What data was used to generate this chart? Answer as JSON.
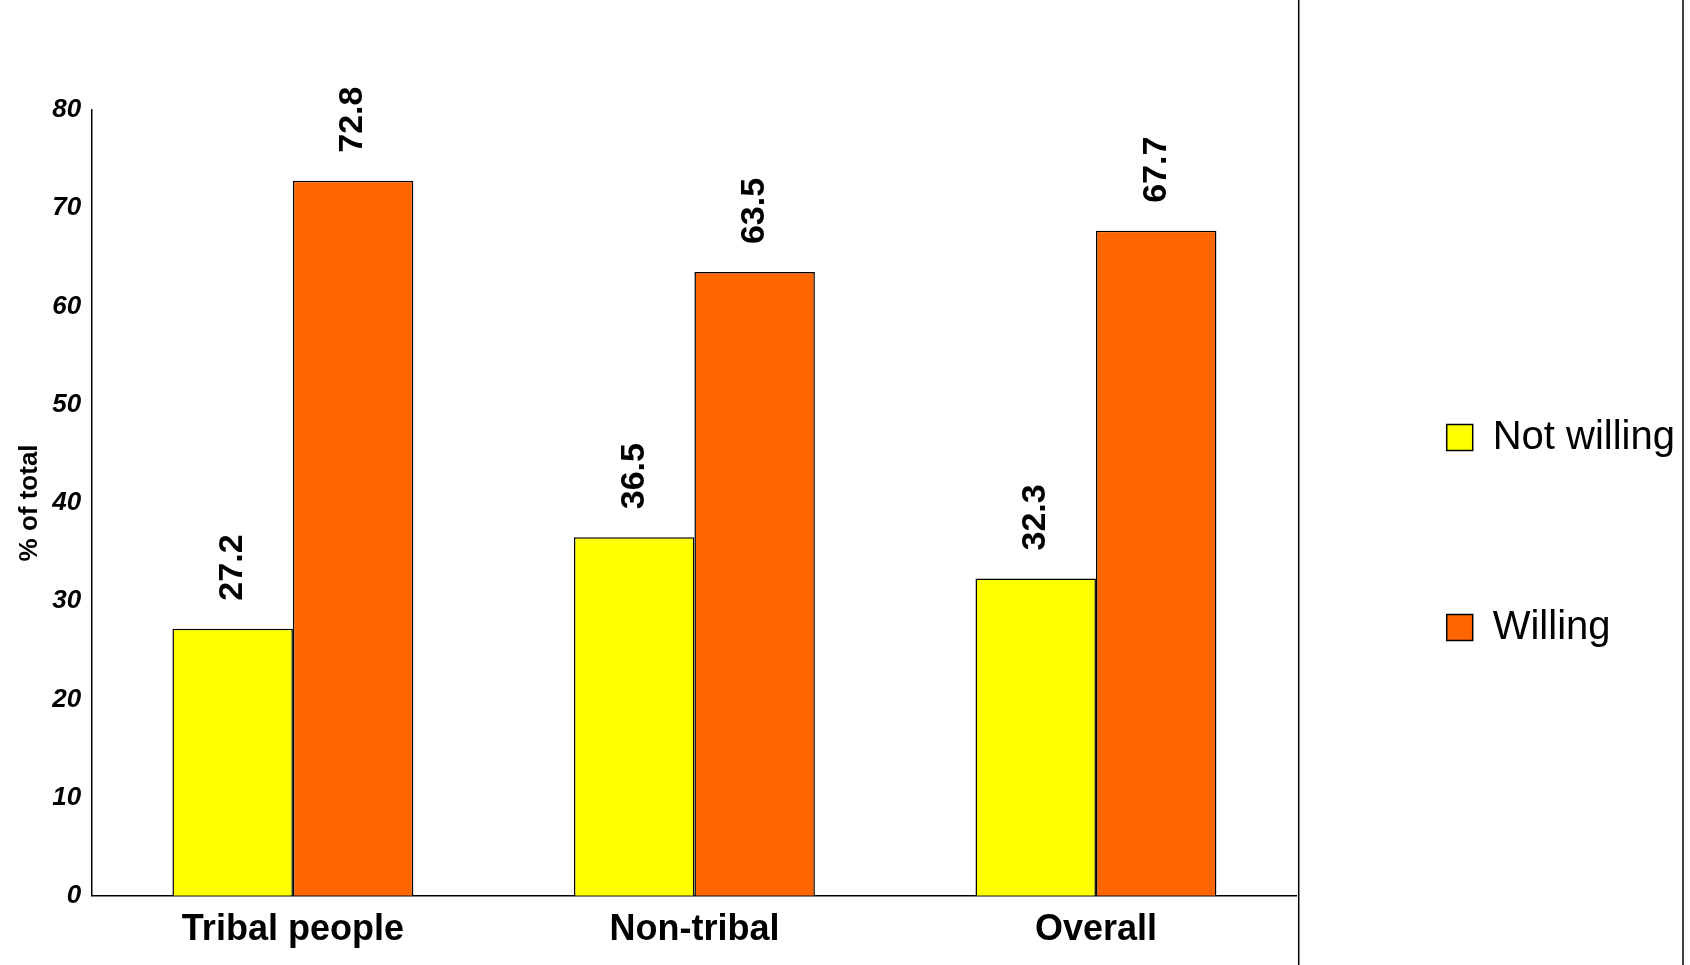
{
  "chart_data": {
    "type": "bar",
    "ylabel": "% of total",
    "categories": [
      "Tribal people",
      "Non-tribal",
      "Overall"
    ],
    "series": [
      {
        "name": "Not willing",
        "color": "#ffff00",
        "values": [
          27.2,
          36.5,
          32.3
        ]
      },
      {
        "name": "Willing",
        "color": "#ff6600",
        "values": [
          72.8,
          63.5,
          67.7
        ]
      }
    ],
    "ylim": [
      0,
      80
    ],
    "yticks": [
      0,
      10,
      20,
      30,
      40,
      50,
      60,
      70,
      80
    ],
    "grid": false,
    "legend": "right",
    "data_labels": true
  }
}
